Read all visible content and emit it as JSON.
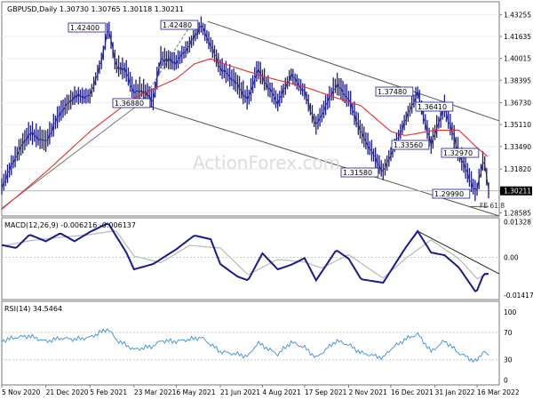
{
  "chart_data": [
    {
      "panel": "price",
      "type": "bar",
      "title": "GBPUSD,Daily  1.30730 1.30765 1.30118 1.30211",
      "last_price": "1.30211",
      "ylim": [
        1.2835,
        1.442
      ],
      "y_ticks": [
        "1.43255",
        "1.41635",
        "1.40015",
        "1.38395",
        "1.36730",
        "1.35110",
        "1.33490",
        "1.31820",
        "1.30200",
        "1.28585"
      ],
      "y_tick_values": [
        1.43255,
        1.41635,
        1.40015,
        1.38395,
        1.3673,
        1.3511,
        1.3349,
        1.3182,
        1.302,
        1.28585
      ],
      "x_ticks": [
        "5 Nov 2020",
        "21 Dec 2020",
        "5 Feb 2021",
        "23 Mar 2021",
        "6 May 2021",
        "21 Jun 2021",
        "4 Aug 2021",
        "17 Sep 2021",
        "2 Nov 2021",
        "16 Dec 2021",
        "31 Jan 2022",
        "16 Mar 2022"
      ],
      "x_tick_dates": [
        "2020-11-05",
        "2020-12-21",
        "2021-02-05",
        "2021-03-23",
        "2021-05-06",
        "2021-06-21",
        "2021-08-04",
        "2021-09-17",
        "2021-11-02",
        "2021-12-16",
        "2022-01-31",
        "2022-03-16"
      ],
      "x_range": [
        "2020-11-05",
        "2022-03-28"
      ],
      "series": [
        {
          "style": "price-bars",
          "points": [
            [
              "2020-11-05",
              1.305
            ],
            [
              "2020-11-20",
              1.328
            ],
            [
              "2020-12-04",
              1.345
            ],
            [
              "2020-12-21",
              1.338
            ],
            [
              "2021-01-05",
              1.36
            ],
            [
              "2021-01-20",
              1.372
            ],
            [
              "2021-02-05",
              1.372
            ],
            [
              "2021-02-18",
              1.4
            ],
            [
              "2021-02-24",
              1.424
            ],
            [
              "2021-03-04",
              1.395
            ],
            [
              "2021-03-15",
              1.39
            ],
            [
              "2021-03-23",
              1.374
            ],
            [
              "2021-03-30",
              1.377
            ],
            [
              "2021-04-12",
              1.369
            ],
            [
              "2021-04-20",
              1.4
            ],
            [
              "2021-05-06",
              1.397
            ],
            [
              "2021-05-20",
              1.41
            ],
            [
              "2021-06-01",
              1.4248
            ],
            [
              "2021-06-11",
              1.41
            ],
            [
              "2021-06-21",
              1.393
            ],
            [
              "2021-07-05",
              1.384
            ],
            [
              "2021-07-20",
              1.369
            ],
            [
              "2021-07-30",
              1.392
            ],
            [
              "2021-08-20",
              1.367
            ],
            [
              "2021-09-03",
              1.388
            ],
            [
              "2021-09-17",
              1.375
            ],
            [
              "2021-09-29",
              1.35
            ],
            [
              "2021-10-20",
              1.381
            ],
            [
              "2021-11-02",
              1.37
            ],
            [
              "2021-11-15",
              1.345
            ],
            [
              "2021-12-08",
              1.3158
            ],
            [
              "2021-12-16",
              1.329
            ],
            [
              "2021-12-31",
              1.354
            ],
            [
              "2022-01-13",
              1.3748
            ],
            [
              "2022-01-27",
              1.3356
            ],
            [
              "2022-01-31",
              1.345
            ],
            [
              "2022-02-10",
              1.364
            ],
            [
              "2022-02-25",
              1.3297
            ],
            [
              "2022-03-15",
              1.2999
            ],
            [
              "2022-03-23",
              1.327
            ],
            [
              "2022-03-28",
              1.3021
            ]
          ]
        },
        {
          "name": "",
          "style": "moving-average",
          "color": "#e03030",
          "points": [
            [
              "2020-11-05",
              1.2885
            ],
            [
              "2020-12-21",
              1.316
            ],
            [
              "2021-02-05",
              1.346
            ],
            [
              "2021-03-23",
              1.371
            ],
            [
              "2021-05-06",
              1.385
            ],
            [
              "2021-05-25",
              1.396
            ],
            [
              "2021-06-11",
              1.4
            ],
            [
              "2021-06-21",
              1.397
            ],
            [
              "2021-08-04",
              1.387
            ],
            [
              "2021-09-17",
              1.379
            ],
            [
              "2021-10-20",
              1.371
            ],
            [
              "2021-11-15",
              1.365
            ],
            [
              "2021-12-16",
              1.346
            ],
            [
              "2021-12-31",
              1.343
            ],
            [
              "2022-01-31",
              1.347
            ],
            [
              "2022-02-25",
              1.347
            ],
            [
              "2022-03-16",
              1.334
            ],
            [
              "2022-03-28",
              1.327
            ]
          ]
        }
      ],
      "annotations": [
        {
          "label": "1.42400",
          "value": 1.424
        },
        {
          "label": "1.42480",
          "value": 1.4248
        },
        {
          "label": "1.36880",
          "value": 1.3688
        },
        {
          "label": "1.37480",
          "value": 1.3748
        },
        {
          "label": "1.36410",
          "value": 1.3641
        },
        {
          "label": "1.33560",
          "value": 1.3356
        },
        {
          "label": "1.32970",
          "value": 1.3297
        },
        {
          "label": "1.31580",
          "value": 1.3158
        },
        {
          "label": "1.29990",
          "value": 1.2999
        },
        {
          "label": "FE 61.8",
          "value": 1.2885
        }
      ],
      "watermark": "ActionForex.com"
    },
    {
      "panel": "macd",
      "type": "line",
      "title": "MACD(12,26,9) -0.006216 -0.006137",
      "y_ticks": [
        "0.01328",
        "0.00",
        "-0.014173"
      ],
      "y_tick_values": [
        0.01328,
        0.0,
        -0.014173
      ],
      "ylim": [
        -0.0158,
        0.0148
      ],
      "series": [
        {
          "style": "main-line",
          "color": "#1a1a8c",
          "points": [
            [
              "2020-11-05",
              0.0046
            ],
            [
              "2020-11-20",
              0.0035
            ],
            [
              "2020-12-04",
              0.0085
            ],
            [
              "2020-12-21",
              0.006
            ],
            [
              "2021-01-05",
              0.009
            ],
            [
              "2021-01-20",
              0.006
            ],
            [
              "2021-02-05",
              0.0095
            ],
            [
              "2021-02-24",
              0.0128
            ],
            [
              "2021-03-15",
              0.0018
            ],
            [
              "2021-03-23",
              -0.0045
            ],
            [
              "2021-04-12",
              -0.0025
            ],
            [
              "2021-05-06",
              0.003
            ],
            [
              "2021-05-25",
              0.0082
            ],
            [
              "2021-06-11",
              0.0068
            ],
            [
              "2021-06-21",
              -0.0025
            ],
            [
              "2021-07-09",
              -0.0072
            ],
            [
              "2021-07-20",
              -0.0086
            ],
            [
              "2021-08-04",
              0.0015
            ],
            [
              "2021-08-20",
              -0.0045
            ],
            [
              "2021-09-03",
              -0.0028
            ],
            [
              "2021-09-17",
              -0.0003
            ],
            [
              "2021-09-29",
              -0.0086
            ],
            [
              "2021-10-20",
              0.0027
            ],
            [
              "2021-11-02",
              -0.0005
            ],
            [
              "2021-11-15",
              -0.0082
            ],
            [
              "2021-12-08",
              -0.0095
            ],
            [
              "2021-12-16",
              -0.005
            ],
            [
              "2021-12-31",
              0.0034
            ],
            [
              "2022-01-13",
              0.0098
            ],
            [
              "2022-01-27",
              0.0018
            ],
            [
              "2022-02-10",
              0.0008
            ],
            [
              "2022-02-25",
              -0.0038
            ],
            [
              "2022-03-15",
              -0.0132
            ],
            [
              "2022-03-23",
              -0.0062
            ],
            [
              "2022-03-28",
              -0.0062
            ]
          ]
        },
        {
          "style": "signal-line",
          "color": "#b8b8b8",
          "points": [
            [
              "2020-11-05",
              0.0042
            ],
            [
              "2020-12-04",
              0.0062
            ],
            [
              "2021-01-05",
              0.0075
            ],
            [
              "2021-02-05",
              0.0085
            ],
            [
              "2021-03-04",
              0.01
            ],
            [
              "2021-03-23",
              0.0005
            ],
            [
              "2021-04-20",
              -0.002
            ],
            [
              "2021-05-20",
              0.0045
            ],
            [
              "2021-06-21",
              0.0035
            ],
            [
              "2021-07-20",
              -0.0065
            ],
            [
              "2021-08-20",
              -0.0008
            ],
            [
              "2021-09-17",
              -0.0018
            ],
            [
              "2021-10-05",
              -0.004
            ],
            [
              "2021-11-02",
              0.001
            ],
            [
              "2021-12-08",
              -0.0078
            ],
            [
              "2021-12-31",
              -0.0005
            ],
            [
              "2022-01-27",
              0.0065
            ],
            [
              "2022-02-25",
              -0.0005
            ],
            [
              "2022-03-16",
              -0.008
            ],
            [
              "2022-03-28",
              -0.0061
            ]
          ]
        }
      ]
    },
    {
      "panel": "rsi",
      "type": "line",
      "title": "RSI(14) 34.5464",
      "y_ticks": [
        "100",
        "70",
        "30",
        "0"
      ],
      "y_tick_values": [
        100,
        70,
        30,
        0
      ],
      "ylim": [
        0,
        100
      ],
      "series": [
        {
          "style": "rsi-line",
          "color": "#3b8fdc",
          "points": [
            [
              "2020-11-05",
              58
            ],
            [
              "2020-11-20",
              63
            ],
            [
              "2020-12-04",
              65
            ],
            [
              "2020-12-21",
              57
            ],
            [
              "2021-01-05",
              62
            ],
            [
              "2021-01-20",
              60
            ],
            [
              "2021-02-05",
              63
            ],
            [
              "2021-02-24",
              76
            ],
            [
              "2021-03-04",
              60
            ],
            [
              "2021-03-23",
              45
            ],
            [
              "2021-04-12",
              50
            ],
            [
              "2021-04-20",
              58
            ],
            [
              "2021-05-06",
              57
            ],
            [
              "2021-05-20",
              60
            ],
            [
              "2021-06-01",
              63
            ],
            [
              "2021-06-21",
              42
            ],
            [
              "2021-07-09",
              38
            ],
            [
              "2021-07-20",
              35
            ],
            [
              "2021-07-30",
              55
            ],
            [
              "2021-08-20",
              38
            ],
            [
              "2021-09-03",
              56
            ],
            [
              "2021-09-17",
              48
            ],
            [
              "2021-09-29",
              33
            ],
            [
              "2021-10-20",
              58
            ],
            [
              "2021-11-02",
              52
            ],
            [
              "2021-11-15",
              40
            ],
            [
              "2021-12-08",
              33
            ],
            [
              "2021-12-16",
              46
            ],
            [
              "2021-12-31",
              60
            ],
            [
              "2022-01-13",
              68
            ],
            [
              "2022-01-27",
              42
            ],
            [
              "2022-02-10",
              58
            ],
            [
              "2022-02-25",
              40
            ],
            [
              "2022-03-15",
              27
            ],
            [
              "2022-03-23",
              44
            ],
            [
              "2022-03-28",
              34.5
            ]
          ]
        }
      ]
    }
  ]
}
